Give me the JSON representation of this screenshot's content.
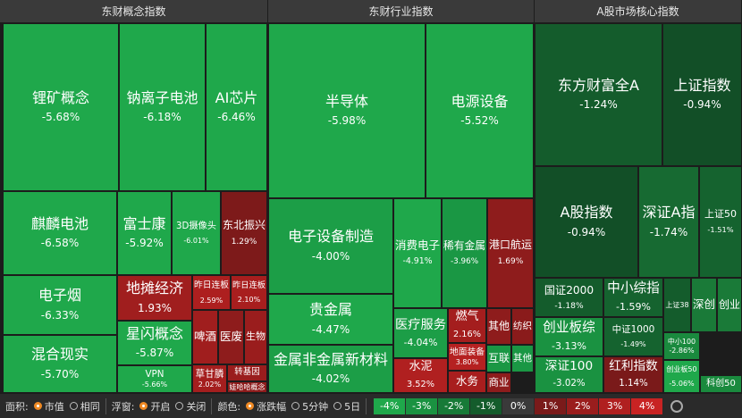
{
  "panels": [
    {
      "title": "东财概念指数",
      "tiles": [
        {
          "name": "锂矿概念",
          "change": "-5.68%",
          "color": "#1fa84b"
        },
        {
          "name": "钠离子电池",
          "change": "-6.18%",
          "color": "#1fa84b"
        },
        {
          "name": "AI芯片",
          "change": "-6.46%",
          "color": "#1fa84b"
        },
        {
          "name": "麒麟电池",
          "change": "-6.58%",
          "color": "#1fa84b"
        },
        {
          "name": "电子烟",
          "change": "-6.33%",
          "color": "#1fa84b"
        },
        {
          "name": "混合现实",
          "change": "-5.70%",
          "color": "#1fa84b"
        },
        {
          "name": "富士康",
          "change": "-5.92%",
          "color": "#1fa84b"
        },
        {
          "name": "3D摄像头",
          "change": "-6.01%",
          "color": "#1fa84b"
        },
        {
          "name": "东北振兴",
          "change": "1.29%",
          "color": "#7d1a1a"
        },
        {
          "name": "地摊经济",
          "change": "1.93%",
          "color": "#a01e1e"
        },
        {
          "name": "星闪概念",
          "change": "-5.87%",
          "color": "#1fa84b"
        },
        {
          "name": "VPN",
          "change": "-5.66%",
          "color": "#1fa84b"
        },
        {
          "name": "昨日连板",
          "change": "2.59%",
          "color": "#ad1f1f"
        },
        {
          "name": "昨日连板",
          "change": "2.10%",
          "color": "#a81e1e"
        },
        {
          "name": "啤酒",
          "color": "#a01e1e"
        },
        {
          "name": "医废",
          "color": "#8e1c1c"
        },
        {
          "name": "生物",
          "color": "#9a1d1d"
        },
        {
          "name": "草甘膦",
          "change": "2.02%",
          "color": "#a41e1e"
        },
        {
          "name": "转基因",
          "color": "#9a1d1d"
        },
        {
          "name": "娃哈哈概念",
          "color": "#8e1c1c"
        }
      ]
    },
    {
      "title": "东财行业指数",
      "tiles": [
        {
          "name": "半导体",
          "change": "-5.98%",
          "color": "#1fa84b"
        },
        {
          "name": "电源设备",
          "change": "-5.52%",
          "color": "#1fa84b"
        },
        {
          "name": "电子设备制造",
          "change": "-4.00%",
          "color": "#1c9e47"
        },
        {
          "name": "贵金属",
          "change": "-4.47%",
          "color": "#1fa84b"
        },
        {
          "name": "金属非金属新材料",
          "change": "-4.02%",
          "color": "#1c9e47"
        },
        {
          "name": "消费电子",
          "change": "-4.91%",
          "color": "#1fa84b"
        },
        {
          "name": "稀有金属",
          "change": "-3.96%",
          "color": "#1a9744"
        },
        {
          "name": "港口航运",
          "change": "1.69%",
          "color": "#8e1c1c"
        },
        {
          "name": "医疗服务",
          "change": "-4.04%",
          "color": "#1c9e47"
        },
        {
          "name": "水泥",
          "change": "3.52%",
          "color": "#b02020"
        },
        {
          "name": "燃气",
          "change": "2.16%",
          "color": "#a41e1e"
        },
        {
          "name": "地面装备",
          "change": "3.80%",
          "color": "#b52121"
        },
        {
          "name": "水务",
          "color": "#a81e1e"
        },
        {
          "name": "其他",
          "color": "#8e1c1c"
        },
        {
          "name": "纺织",
          "color": "#8a1b1b"
        },
        {
          "name": "互联",
          "color": "#1a9744"
        },
        {
          "name": "其他",
          "color": "#1a9744"
        },
        {
          "name": "商业",
          "color": "#8e1c1c"
        }
      ]
    },
    {
      "title": "A股市场核心指数",
      "tiles": [
        {
          "name": "东方财富全A",
          "change": "-1.24%",
          "color": "#145c2c"
        },
        {
          "name": "上证指数",
          "change": "-0.94%",
          "color": "#124f27"
        },
        {
          "name": "A股指数",
          "change": "-0.94%",
          "color": "#124f27"
        },
        {
          "name": "深证A指",
          "change": "-1.74%",
          "color": "#176a32"
        },
        {
          "name": "上证50",
          "change": "-1.51%",
          "color": "#15632f"
        },
        {
          "name": "国证2000",
          "change": "-1.18%",
          "color": "#145c2c"
        },
        {
          "name": "创业板综",
          "change": "-3.13%",
          "color": "#1a9241"
        },
        {
          "name": "深证100",
          "change": "-3.02%",
          "color": "#1a9241"
        },
        {
          "name": "中小综指",
          "change": "-1.59%",
          "color": "#15632f"
        },
        {
          "name": "中证1000",
          "change": "-1.49%",
          "color": "#15632f"
        },
        {
          "name": "红利指数",
          "change": "1.14%",
          "color": "#7a1a1a"
        },
        {
          "name": "上证38",
          "color": "#145c2c"
        },
        {
          "name": "深创",
          "color": "#1a7a38"
        },
        {
          "name": "创业",
          "color": "#1a7a38"
        },
        {
          "name": "中小100",
          "change": "-2.86%",
          "color": "#1a8a3e"
        },
        {
          "name": "创业板50",
          "change": "-5.06%",
          "color": "#1fa84b"
        },
        {
          "name": "科创50",
          "color": "#1a8a3e"
        }
      ]
    }
  ],
  "toolbar": [
    {
      "label": "面积:",
      "options": [
        "市值",
        "相同"
      ]
    },
    {
      "label": "浮窗:",
      "options": [
        "开启",
        "关闭"
      ]
    },
    {
      "label": "颜色:",
      "options": [
        "涨跌幅",
        "5分钟",
        "5日"
      ]
    }
  ],
  "legend": [
    {
      "label": "-4%",
      "color": "#1fa84b"
    },
    {
      "label": "-3%",
      "color": "#1a9241"
    },
    {
      "label": "-2%",
      "color": "#177a37"
    },
    {
      "label": "-1%",
      "color": "#145c2c"
    },
    {
      "label": "0%",
      "color": "#3a3a3a"
    },
    {
      "label": "1%",
      "color": "#7a1a1a"
    },
    {
      "label": "2%",
      "color": "#9a1d1d"
    },
    {
      "label": "3%",
      "color": "#b02020"
    },
    {
      "label": "4%",
      "color": "#c82323"
    }
  ]
}
